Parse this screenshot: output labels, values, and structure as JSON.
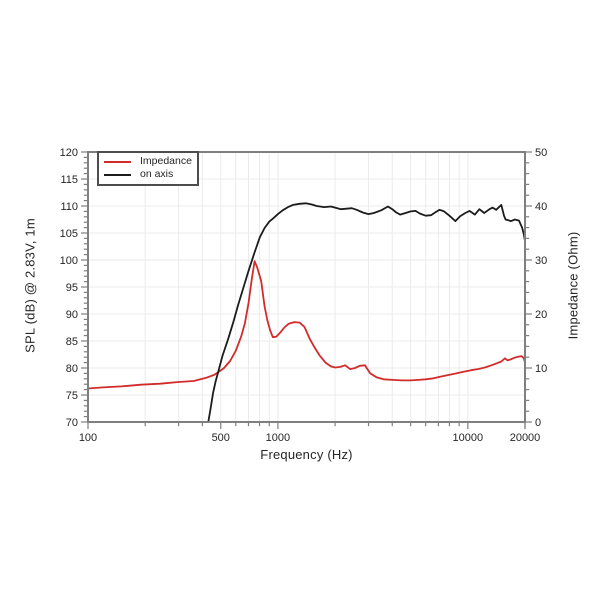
{
  "figure": {
    "background": "#ffffff",
    "axis_color": "#7f7f7f",
    "grid_color": "#ebebeb",
    "tick_color": "#7f7f7f",
    "text_color": "#262626"
  },
  "chart_data": {
    "type": "line",
    "title": "",
    "xlabel": "Frequency (Hz)",
    "ylabel_left": "SPL (dB) @ 2.83V, 1m",
    "ylabel_right": "Impedance (Ohm)",
    "x_scale": "log",
    "xlim": [
      100,
      20000
    ],
    "ylim_left": [
      70,
      120
    ],
    "ylim_right": [
      0,
      50
    ],
    "x_ticks_labeled": [
      100,
      500,
      1000,
      10000,
      20000
    ],
    "x_tick_labels": [
      "100",
      "500",
      "1000",
      "10000",
      "20000"
    ],
    "y_ticks_left": [
      70,
      75,
      80,
      85,
      90,
      95,
      100,
      105,
      110,
      115,
      120
    ],
    "y_minor_step_left": 1,
    "y_ticks_right": [
      0,
      10,
      20,
      30,
      40,
      50
    ],
    "y_minor_step_right": 2,
    "grid": "on",
    "legend": {
      "position": "top-left",
      "entries": [
        {
          "label": "Impedance",
          "color": "#d22b2b"
        },
        {
          "label": "on axis",
          "color": "#1c1c1c"
        }
      ]
    },
    "series": [
      {
        "name": "Impedance",
        "axis": "right",
        "unit": "Ohm",
        "color": "#d22b2b",
        "points": [
          [
            100,
            6.2
          ],
          [
            120,
            6.4
          ],
          [
            150,
            6.6
          ],
          [
            190,
            6.9
          ],
          [
            240,
            7.1
          ],
          [
            300,
            7.4
          ],
          [
            360,
            7.6
          ],
          [
            420,
            8.2
          ],
          [
            460,
            8.7
          ],
          [
            484,
            9.2
          ],
          [
            520,
            10
          ],
          [
            560,
            11.3
          ],
          [
            600,
            13.2
          ],
          [
            640,
            15.8
          ],
          [
            670,
            18.3
          ],
          [
            700,
            22
          ],
          [
            726,
            26.1
          ],
          [
            754,
            29.8
          ],
          [
            780,
            28.5
          ],
          [
            817,
            26.1
          ],
          [
            850,
            21.5
          ],
          [
            880,
            18.8
          ],
          [
            910,
            17
          ],
          [
            940,
            15.7
          ],
          [
            980,
            15.8
          ],
          [
            1030,
            16.6
          ],
          [
            1080,
            17.5
          ],
          [
            1140,
            18.2
          ],
          [
            1220,
            18.5
          ],
          [
            1300,
            18.4
          ],
          [
            1380,
            17.6
          ],
          [
            1470,
            15.4
          ],
          [
            1560,
            13.8
          ],
          [
            1660,
            12.3
          ],
          [
            1780,
            11
          ],
          [
            1900,
            10.3
          ],
          [
            2000,
            10.1
          ],
          [
            2130,
            10.2
          ],
          [
            2260,
            10.5
          ],
          [
            2400,
            9.8
          ],
          [
            2550,
            10
          ],
          [
            2700,
            10.4
          ],
          [
            2870,
            10.5
          ],
          [
            3060,
            9
          ],
          [
            3300,
            8.3
          ],
          [
            3600,
            7.9
          ],
          [
            4000,
            7.8
          ],
          [
            4500,
            7.7
          ],
          [
            5000,
            7.7
          ],
          [
            5500,
            7.8
          ],
          [
            6000,
            7.9
          ],
          [
            6600,
            8.1
          ],
          [
            7200,
            8.4
          ],
          [
            7900,
            8.7
          ],
          [
            8700,
            9
          ],
          [
            9500,
            9.3
          ],
          [
            10400,
            9.6
          ],
          [
            11300,
            9.8
          ],
          [
            12300,
            10.1
          ],
          [
            13300,
            10.5
          ],
          [
            14300,
            10.9
          ],
          [
            15000,
            11.2
          ],
          [
            15700,
            11.8
          ],
          [
            16200,
            11.4
          ],
          [
            16800,
            11.6
          ],
          [
            17600,
            11.9
          ],
          [
            18400,
            12.1
          ],
          [
            19200,
            12.2
          ],
          [
            19700,
            11.8
          ],
          [
            20000,
            11.1
          ]
        ]
      },
      {
        "name": "on axis",
        "axis": "left",
        "unit": "dB SPL",
        "color": "#1c1c1c",
        "points": [
          [
            430,
            70
          ],
          [
            442,
            72.5
          ],
          [
            456,
            75.4
          ],
          [
            470,
            77.5
          ],
          [
            484,
            79.2
          ],
          [
            510,
            82.2
          ],
          [
            547,
            85.4
          ],
          [
            580,
            88.3
          ],
          [
            618,
            91.7
          ],
          [
            660,
            95
          ],
          [
            699,
            97.9
          ],
          [
            750,
            101.2
          ],
          [
            803,
            104.2
          ],
          [
            850,
            105.9
          ],
          [
            900,
            107.1
          ],
          [
            950,
            107.8
          ],
          [
            1000,
            108.5
          ],
          [
            1060,
            109.2
          ],
          [
            1130,
            109.8
          ],
          [
            1200,
            110.2
          ],
          [
            1300,
            110.4
          ],
          [
            1400,
            110.5
          ],
          [
            1500,
            110.3
          ],
          [
            1600,
            110
          ],
          [
            1750,
            109.8
          ],
          [
            1900,
            109.9
          ],
          [
            2000,
            109.7
          ],
          [
            2150,
            109.4
          ],
          [
            2300,
            109.5
          ],
          [
            2450,
            109.6
          ],
          [
            2600,
            109.3
          ],
          [
            2800,
            108.8
          ],
          [
            3000,
            108.5
          ],
          [
            3200,
            108.7
          ],
          [
            3500,
            109.2
          ],
          [
            3800,
            109.9
          ],
          [
            4000,
            109.4
          ],
          [
            4200,
            108.8
          ],
          [
            4400,
            108.4
          ],
          [
            4700,
            108.7
          ],
          [
            5000,
            109
          ],
          [
            5300,
            109.1
          ],
          [
            5600,
            108.6
          ],
          [
            6000,
            108.2
          ],
          [
            6400,
            108.3
          ],
          [
            6800,
            108.9
          ],
          [
            7100,
            109.3
          ],
          [
            7500,
            109
          ],
          [
            8000,
            108.2
          ],
          [
            8600,
            107.2
          ],
          [
            9100,
            108.1
          ],
          [
            9700,
            108.7
          ],
          [
            10200,
            109.1
          ],
          [
            10900,
            108.4
          ],
          [
            11500,
            109.4
          ],
          [
            12200,
            108.7
          ],
          [
            13000,
            109.4
          ],
          [
            13500,
            109.7
          ],
          [
            14100,
            109.3
          ],
          [
            15000,
            110.2
          ],
          [
            15500,
            108.2
          ],
          [
            15800,
            107.5
          ],
          [
            16900,
            107.2
          ],
          [
            17700,
            107.5
          ],
          [
            18600,
            107.3
          ],
          [
            19300,
            106
          ],
          [
            19700,
            104.8
          ],
          [
            20000,
            103.5
          ]
        ]
      }
    ]
  }
}
